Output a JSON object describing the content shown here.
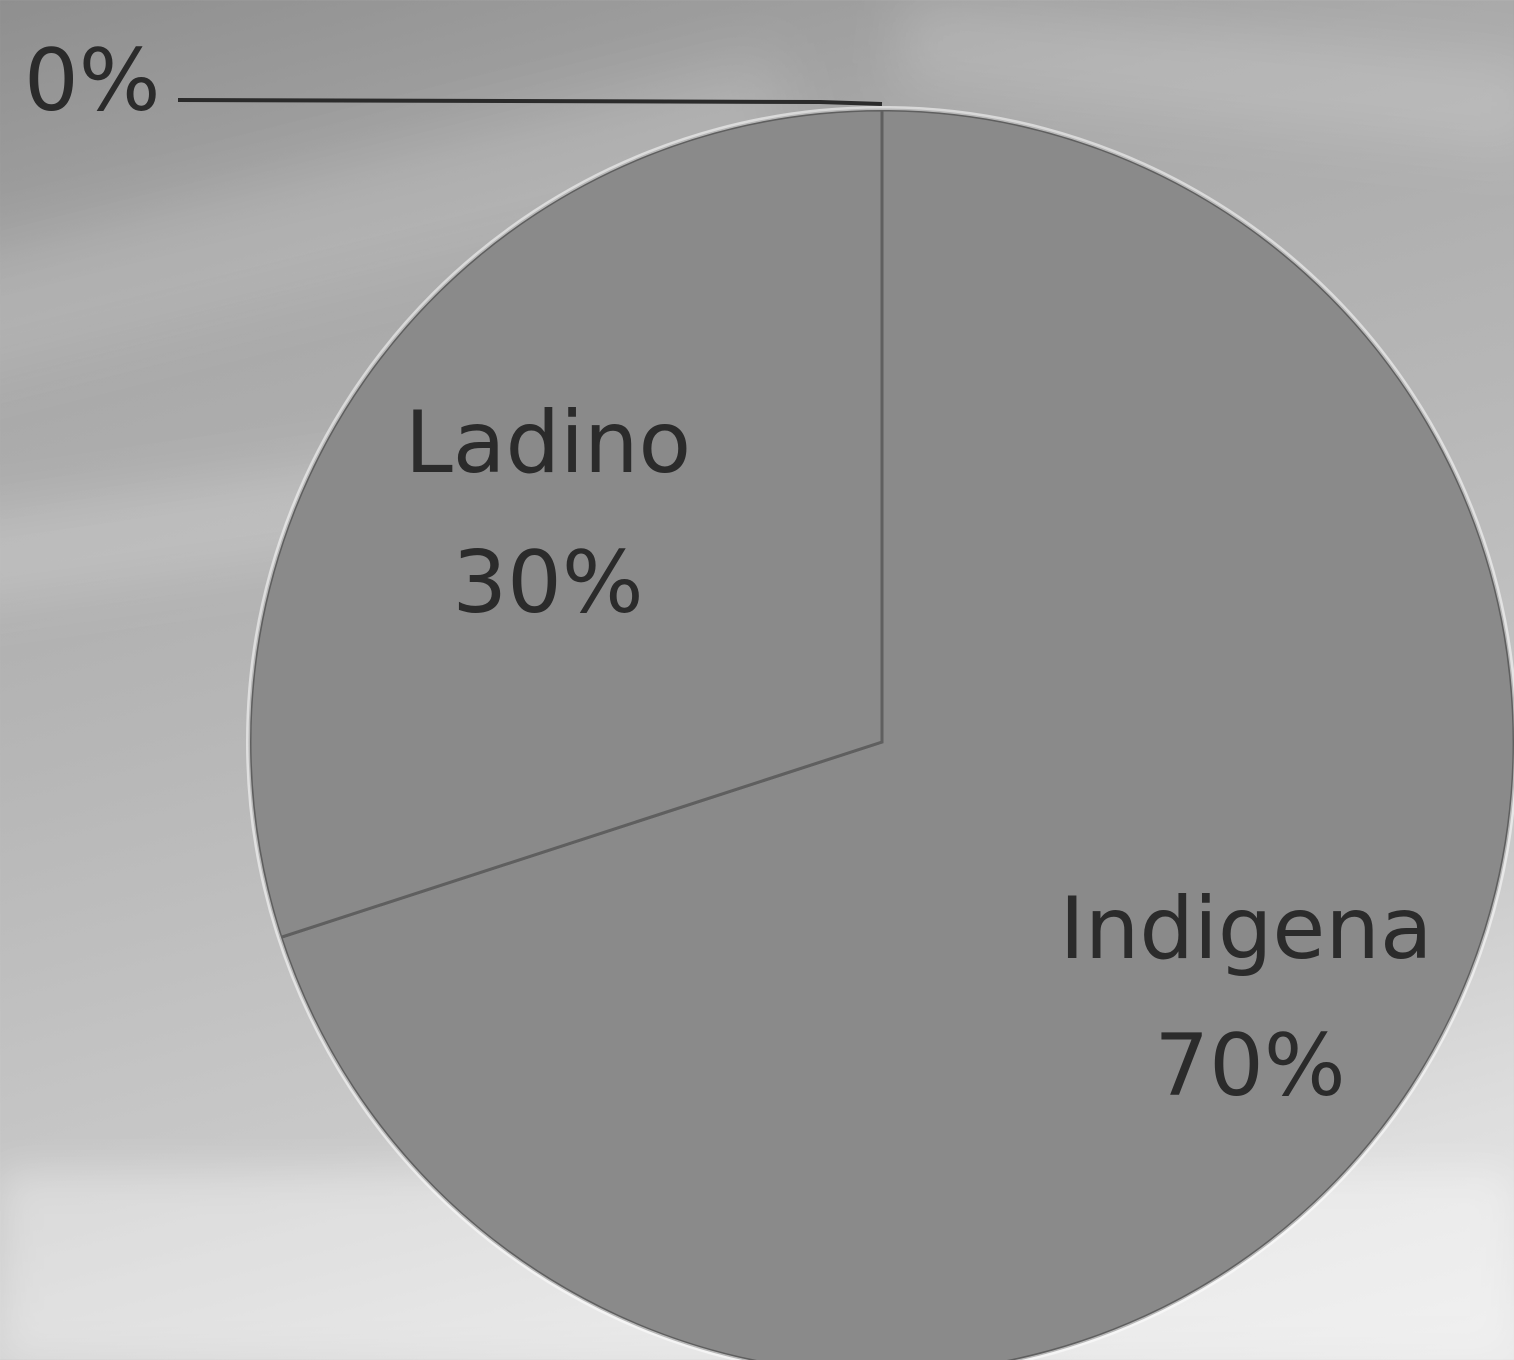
{
  "chart_data": {
    "type": "pie",
    "slices": [
      {
        "label": "Ladino",
        "value": 30,
        "percent_label": "30%"
      },
      {
        "label": "Indigena",
        "value": 70,
        "percent_label": "70%"
      },
      {
        "label": "",
        "value": 0,
        "percent_label": "0%"
      }
    ],
    "colors": {
      "slice_fill": "#8a8a8a",
      "slice_border": "#5f5f5f",
      "label_text": "#2b2b2b",
      "leader_line": "#2b2b2b"
    },
    "legend": "none"
  }
}
